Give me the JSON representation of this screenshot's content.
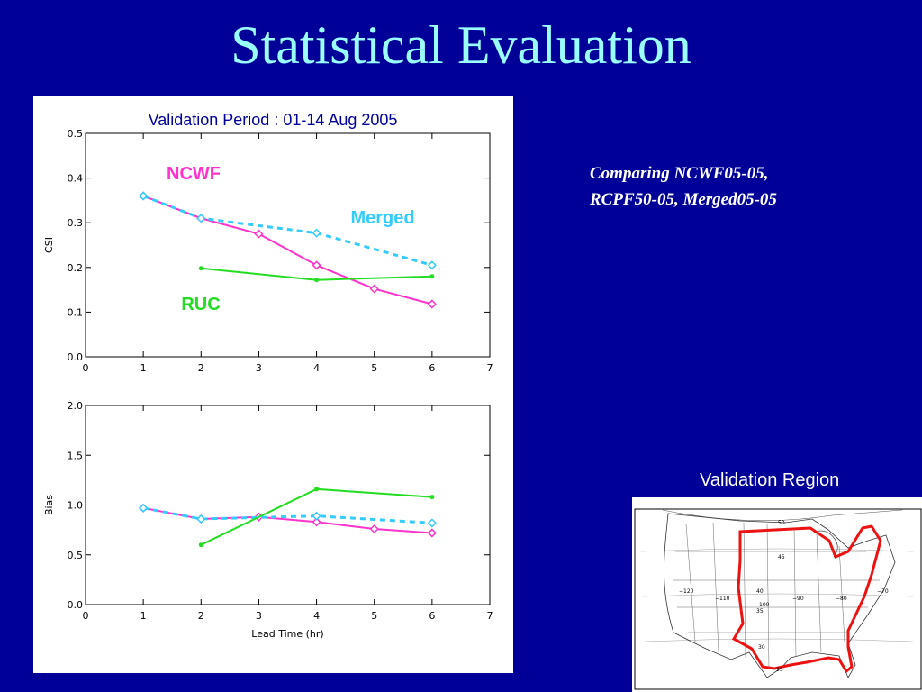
{
  "slide": {
    "title": "Statistical Evaluation",
    "note_lines": [
      "Comparing NCWF05-05,",
      "RCPF50-05, Merged05-05"
    ],
    "map_caption": "Validation Region",
    "background_color": "#000099",
    "title_color": "#99ffff"
  },
  "chart_data": [
    {
      "type": "line",
      "title": "Validation Period : 01-14 Aug 2005",
      "xlabel": "",
      "ylabel": "CSI",
      "xlim": [
        0,
        7
      ],
      "ylim": [
        0,
        0.5
      ],
      "x_ticks": [
        "0",
        "1",
        "2",
        "3",
        "4",
        "5",
        "6",
        "7"
      ],
      "y_ticks": [
        "0.0",
        "0.1",
        "0.2",
        "0.3",
        "0.4",
        "0.5"
      ],
      "grid": false,
      "series": [
        {
          "name": "NCWF",
          "color": "#ff33cc",
          "style": "solid",
          "marker": "diamond",
          "x": [
            1,
            2,
            3,
            4,
            5,
            6
          ],
          "y": [
            0.36,
            0.31,
            0.275,
            0.205,
            0.152,
            0.118
          ]
        },
        {
          "name": "Merged",
          "color": "#33ccff",
          "style": "dashed",
          "marker": "diamond",
          "x": [
            1,
            2,
            4,
            6
          ],
          "y": [
            0.36,
            0.31,
            0.277,
            0.205
          ]
        },
        {
          "name": "RUC",
          "color": "#22dd22",
          "style": "solid",
          "marker": "dot",
          "x": [
            2,
            4,
            6
          ],
          "y": [
            0.198,
            0.172,
            0.18
          ]
        }
      ]
    },
    {
      "type": "line",
      "title": "",
      "xlabel": "Lead Time (hr)",
      "ylabel": "Bias",
      "xlim": [
        0,
        7
      ],
      "ylim": [
        0,
        2
      ],
      "x_ticks": [
        "0",
        "1",
        "2",
        "3",
        "4",
        "5",
        "6",
        "7"
      ],
      "y_ticks": [
        "0.0",
        "0.5",
        "1.0",
        "1.5",
        "2.0"
      ],
      "grid": false,
      "series": [
        {
          "name": "NCWF",
          "color": "#ff33cc",
          "style": "solid",
          "marker": "diamond",
          "x": [
            1,
            2,
            3,
            4,
            5,
            6
          ],
          "y": [
            0.97,
            0.86,
            0.88,
            0.83,
            0.76,
            0.72
          ]
        },
        {
          "name": "Merged",
          "color": "#33ccff",
          "style": "dashed",
          "marker": "diamond",
          "x": [
            1,
            2,
            4,
            6
          ],
          "y": [
            0.97,
            0.86,
            0.89,
            0.82
          ]
        },
        {
          "name": "RUC",
          "color": "#22dd22",
          "style": "solid",
          "marker": "dot",
          "x": [
            2,
            4,
            6
          ],
          "y": [
            0.6,
            1.16,
            1.08
          ]
        }
      ]
    }
  ],
  "map": {
    "longitude_labels": [
      "−120",
      "−110",
      "−100",
      "−90",
      "−80",
      "−70"
    ],
    "latitude_labels": [
      "50",
      "45",
      "40",
      "35",
      "30",
      "25"
    ],
    "region_color": "#ee1111"
  }
}
